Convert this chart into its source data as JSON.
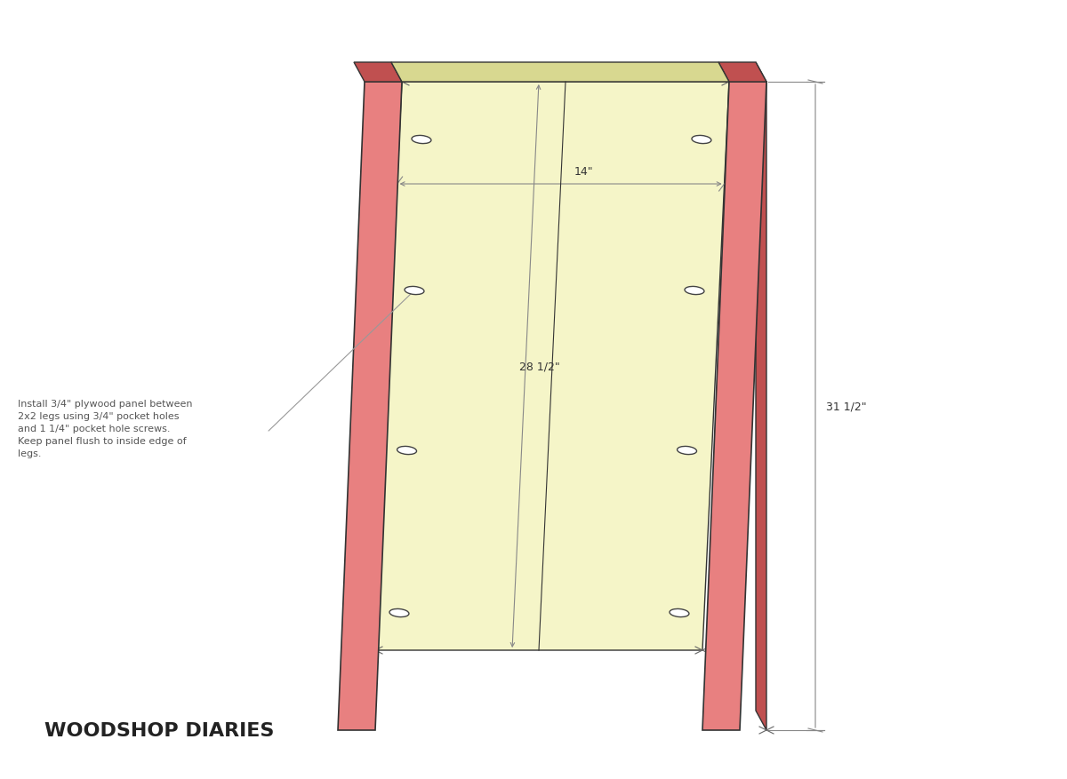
{
  "bg_color": "#ffffff",
  "leg_color": "#e88080",
  "leg_color_dark": "#c05050",
  "panel_color": "#f5f5c8",
  "panel_color_dark": "#d8d890",
  "line_color": "#333333",
  "dim_color": "#888888",
  "text_color": "#333333",
  "title": "WOODSHOP DIARIES",
  "annotation": "Install 3/4\" plywood panel between\n2x2 legs using 3/4\" pocket holes\nand 1 1/4\" pocket hole screws.\nKeep panel flush to inside edge of\nlegs.",
  "dim_width": "14\"",
  "dim_height_panel": "28 1/2\"",
  "dim_height_total": "31 1/2\""
}
